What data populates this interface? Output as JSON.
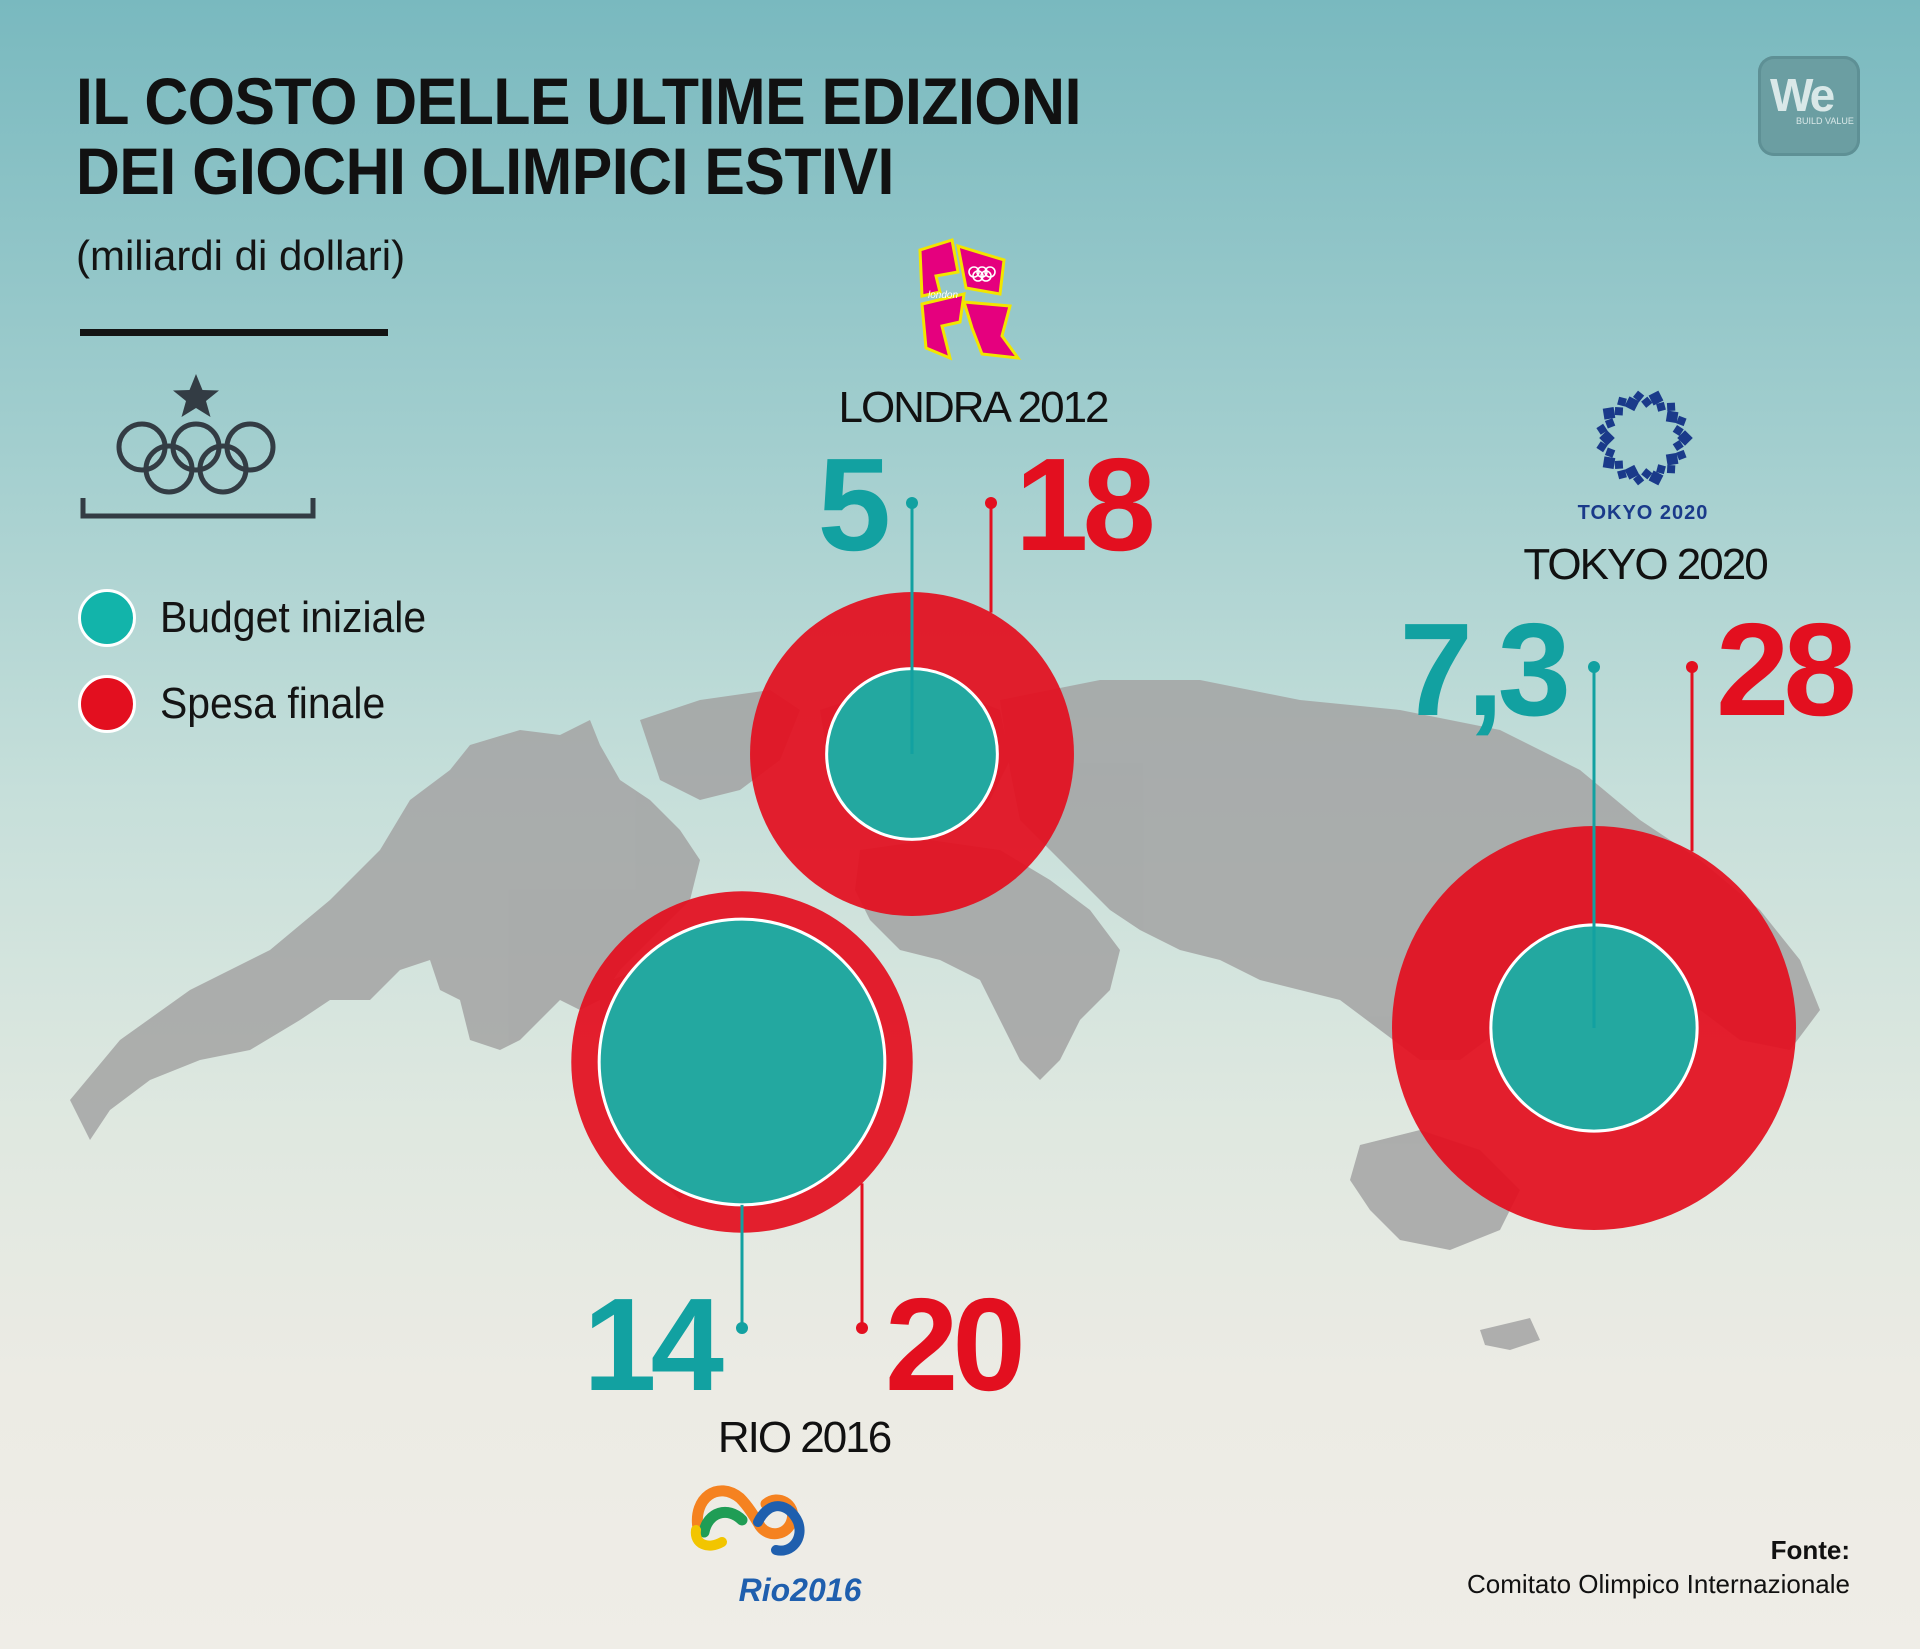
{
  "header": {
    "title_line1": "IL COSTO DELLE ULTIME EDIZIONI",
    "title_line2": "DEI GIOCHI OLIMPICI ESTIVI",
    "subtitle": "(miliardi di dollari)"
  },
  "branding": {
    "logo_text": "We",
    "logo_tagline": "BUILD VALUE"
  },
  "colors": {
    "budget": "#12b4aa",
    "budget_text": "#12a1a1",
    "final": "#e30f1f",
    "map": "#9e9e9e"
  },
  "chart_data": {
    "type": "bubble",
    "unit": "miliardi di dollari",
    "legend": [
      "Budget iniziale",
      "Spesa finale"
    ],
    "legend_placement": "left",
    "series": [
      {
        "name": "Budget iniziale",
        "values": [
          5,
          14,
          7.3
        ],
        "labels": [
          "5",
          "14",
          "7,3"
        ]
      },
      {
        "name": "Spesa finale",
        "values": [
          18,
          20,
          28
        ],
        "labels": [
          "18",
          "20",
          "28"
        ]
      }
    ],
    "categories": [
      "LONDRA 2012",
      "RIO 2016",
      "TOKYO 2020"
    ],
    "logos": [
      "London 2012 logo",
      "Rio 2016 logo",
      "Tokyo 2020 logo"
    ],
    "logo_text": {
      "london": "london",
      "rio": "Rio2016",
      "tokyo": "TOKYO 2020"
    }
  },
  "source": {
    "label": "Fonte:",
    "text": "Comitato Olimpico Internazionale"
  },
  "icons": [
    "olympic-rings-icon",
    "star-icon"
  ]
}
